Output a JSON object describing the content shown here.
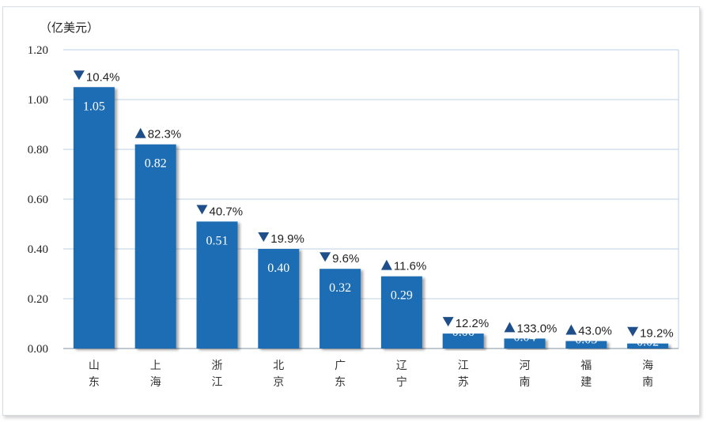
{
  "chart_data": {
    "type": "bar",
    "unit_label": "（亿美元）",
    "categories": [
      "山东",
      "上海",
      "浙江",
      "北京",
      "广东",
      "辽宁",
      "江苏",
      "河南",
      "福建",
      "海南"
    ],
    "values": [
      1.05,
      0.82,
      0.51,
      0.4,
      0.32,
      0.29,
      0.06,
      0.04,
      0.03,
      0.02
    ],
    "value_labels": [
      "1.05",
      "0.82",
      "0.51",
      "0.40",
      "0.32",
      "0.29",
      "0.06",
      "0.04",
      "0.03",
      "0.02"
    ],
    "changes": [
      {
        "direction": "down",
        "text": "10.4%"
      },
      {
        "direction": "up",
        "text": "82.3%"
      },
      {
        "direction": "down",
        "text": "40.7%"
      },
      {
        "direction": "down",
        "text": "19.9%"
      },
      {
        "direction": "down",
        "text": "9.6%"
      },
      {
        "direction": "up",
        "text": "11.6%"
      },
      {
        "direction": "down",
        "text": "12.2%"
      },
      {
        "direction": "up",
        "text": "133.0%"
      },
      {
        "direction": "up",
        "text": "43.0%"
      },
      {
        "direction": "down",
        "text": "19.2%"
      }
    ],
    "ylim": [
      0,
      1.2
    ],
    "yticks": [
      "0.00",
      "0.20",
      "0.40",
      "0.60",
      "0.80",
      "1.00",
      "1.20"
    ],
    "grid": true,
    "colors": {
      "bar": "#1f6db4",
      "grid": "#c9d9ea",
      "marker": "#1f4f8a"
    }
  }
}
